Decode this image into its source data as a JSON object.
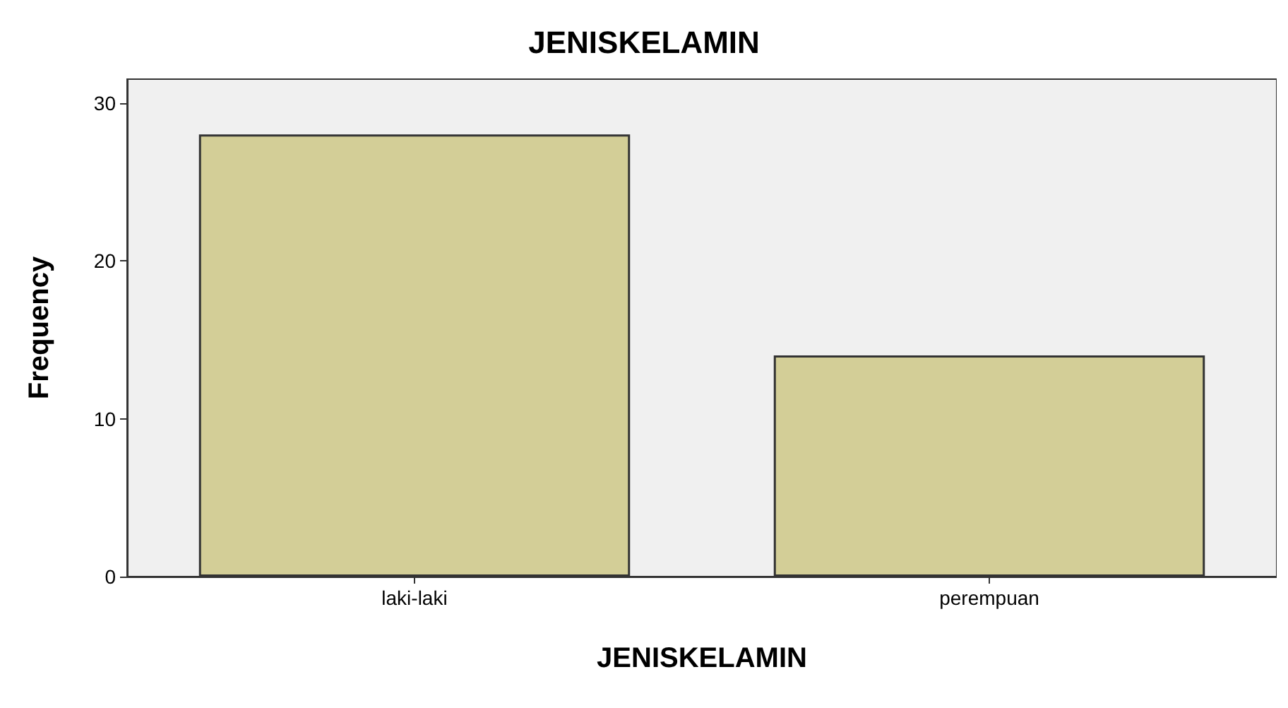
{
  "chart_data": {
    "type": "bar",
    "title": "JENISKELAMIN",
    "xlabel": "JENISKELAMIN",
    "ylabel": "Frequency",
    "categories": [
      "laki-laki",
      "perempuan"
    ],
    "values": [
      28,
      14
    ],
    "color": "#d3ce97",
    "ylim": [
      0,
      31.5
    ],
    "yticks": [
      0,
      10,
      20,
      30
    ],
    "grid": false
  }
}
